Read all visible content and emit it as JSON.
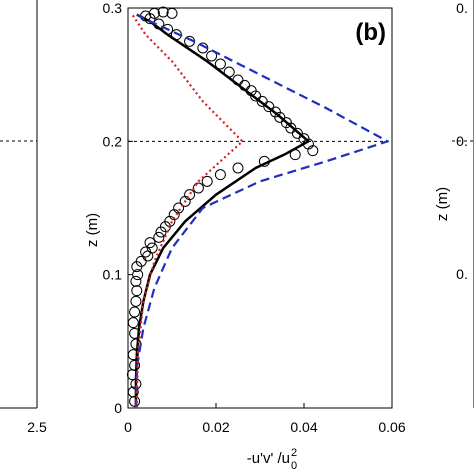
{
  "chart_data": {
    "type": "line",
    "panel_label": "(b)",
    "xlabel": "-u'v' /u",
    "xlabel_sup": "2",
    "xlabel_sub": "0",
    "ylabel": "z (m)",
    "xlim": [
      0,
      0.06
    ],
    "ylim": [
      0,
      0.3
    ],
    "x_ticks": [
      "0",
      "0.02",
      "0.04",
      "0.06"
    ],
    "y_ticks": [
      "0",
      "0.1",
      "0.2",
      "0.3"
    ],
    "reference_line_z": 0.2,
    "left_panel_x_tick": "2.5",
    "right_panel_y_ticks": [
      "0.",
      "0.",
      "0."
    ],
    "series": [
      {
        "style": "markers",
        "marker": "open-circle",
        "color": "#000000",
        "points": [
          [
            0.0015,
            0.005
          ],
          [
            0.0012,
            0.012
          ],
          [
            0.0018,
            0.018
          ],
          [
            0.001,
            0.025
          ],
          [
            0.0015,
            0.032
          ],
          [
            0.0012,
            0.04
          ],
          [
            0.0018,
            0.048
          ],
          [
            0.0015,
            0.056
          ],
          [
            0.0012,
            0.064
          ],
          [
            0.0015,
            0.072
          ],
          [
            0.0018,
            0.08
          ],
          [
            0.002,
            0.088
          ],
          [
            0.0018,
            0.095
          ],
          [
            0.0022,
            0.1
          ],
          [
            0.002,
            0.106
          ],
          [
            0.003,
            0.11
          ],
          [
            0.0045,
            0.114
          ],
          [
            0.004,
            0.117
          ],
          [
            0.0055,
            0.12
          ],
          [
            0.005,
            0.124
          ],
          [
            0.007,
            0.128
          ],
          [
            0.0075,
            0.132
          ],
          [
            0.0085,
            0.136
          ],
          [
            0.0095,
            0.14
          ],
          [
            0.0105,
            0.145
          ],
          [
            0.0115,
            0.15
          ],
          [
            0.013,
            0.155
          ],
          [
            0.014,
            0.16
          ],
          [
            0.016,
            0.165
          ],
          [
            0.018,
            0.17
          ],
          [
            0.021,
            0.175
          ],
          [
            0.025,
            0.18
          ],
          [
            0.031,
            0.185
          ],
          [
            0.038,
            0.19
          ],
          [
            0.042,
            0.193
          ],
          [
            0.041,
            0.198
          ],
          [
            0.04,
            0.202
          ],
          [
            0.0385,
            0.206
          ],
          [
            0.037,
            0.21
          ],
          [
            0.036,
            0.214
          ],
          [
            0.0345,
            0.218
          ],
          [
            0.0335,
            0.222
          ],
          [
            0.032,
            0.226
          ],
          [
            0.0305,
            0.23
          ],
          [
            0.029,
            0.234
          ],
          [
            0.028,
            0.238
          ],
          [
            0.0265,
            0.242
          ],
          [
            0.025,
            0.246
          ],
          [
            0.023,
            0.252
          ],
          [
            0.021,
            0.258
          ],
          [
            0.019,
            0.264
          ],
          [
            0.017,
            0.27
          ],
          [
            0.014,
            0.275
          ],
          [
            0.011,
            0.28
          ],
          [
            0.009,
            0.284
          ],
          [
            0.007,
            0.288
          ],
          [
            0.005,
            0.292
          ],
          [
            0.004,
            0.294
          ],
          [
            0.006,
            0.296
          ],
          [
            0.008,
            0.297
          ],
          [
            0.01,
            0.296
          ]
        ]
      },
      {
        "style": "solid",
        "color": "#000000",
        "points": [
          [
            0.0018,
            0.0
          ],
          [
            0.0018,
            0.02
          ],
          [
            0.002,
            0.04
          ],
          [
            0.0025,
            0.06
          ],
          [
            0.0035,
            0.08
          ],
          [
            0.005,
            0.1
          ],
          [
            0.008,
            0.12
          ],
          [
            0.013,
            0.14
          ],
          [
            0.02,
            0.16
          ],
          [
            0.029,
            0.18
          ],
          [
            0.0355,
            0.19
          ],
          [
            0.041,
            0.2
          ],
          [
            0.034,
            0.22
          ],
          [
            0.026,
            0.24
          ],
          [
            0.018,
            0.26
          ],
          [
            0.009,
            0.28
          ],
          [
            0.005,
            0.29
          ],
          [
            0.002,
            0.295
          ]
        ]
      },
      {
        "style": "dashed",
        "color": "#1f2fbf",
        "points": [
          [
            0.0018,
            0.0
          ],
          [
            0.002,
            0.03
          ],
          [
            0.0035,
            0.06
          ],
          [
            0.006,
            0.09
          ],
          [
            0.01,
            0.12
          ],
          [
            0.017,
            0.15
          ],
          [
            0.03,
            0.17
          ],
          [
            0.045,
            0.185
          ],
          [
            0.059,
            0.2
          ],
          [
            0.045,
            0.225
          ],
          [
            0.03,
            0.25
          ],
          [
            0.015,
            0.275
          ],
          [
            0.005,
            0.29
          ],
          [
            0.002,
            0.295
          ]
        ]
      },
      {
        "style": "dotted",
        "color": "#d42020",
        "points": [
          [
            0.002,
            0.0
          ],
          [
            0.0022,
            0.04
          ],
          [
            0.0035,
            0.08
          ],
          [
            0.006,
            0.11
          ],
          [
            0.01,
            0.14
          ],
          [
            0.016,
            0.17
          ],
          [
            0.026,
            0.2
          ],
          [
            0.017,
            0.23
          ],
          [
            0.01,
            0.26
          ],
          [
            0.004,
            0.28
          ],
          [
            0.001,
            0.295
          ]
        ]
      }
    ]
  }
}
